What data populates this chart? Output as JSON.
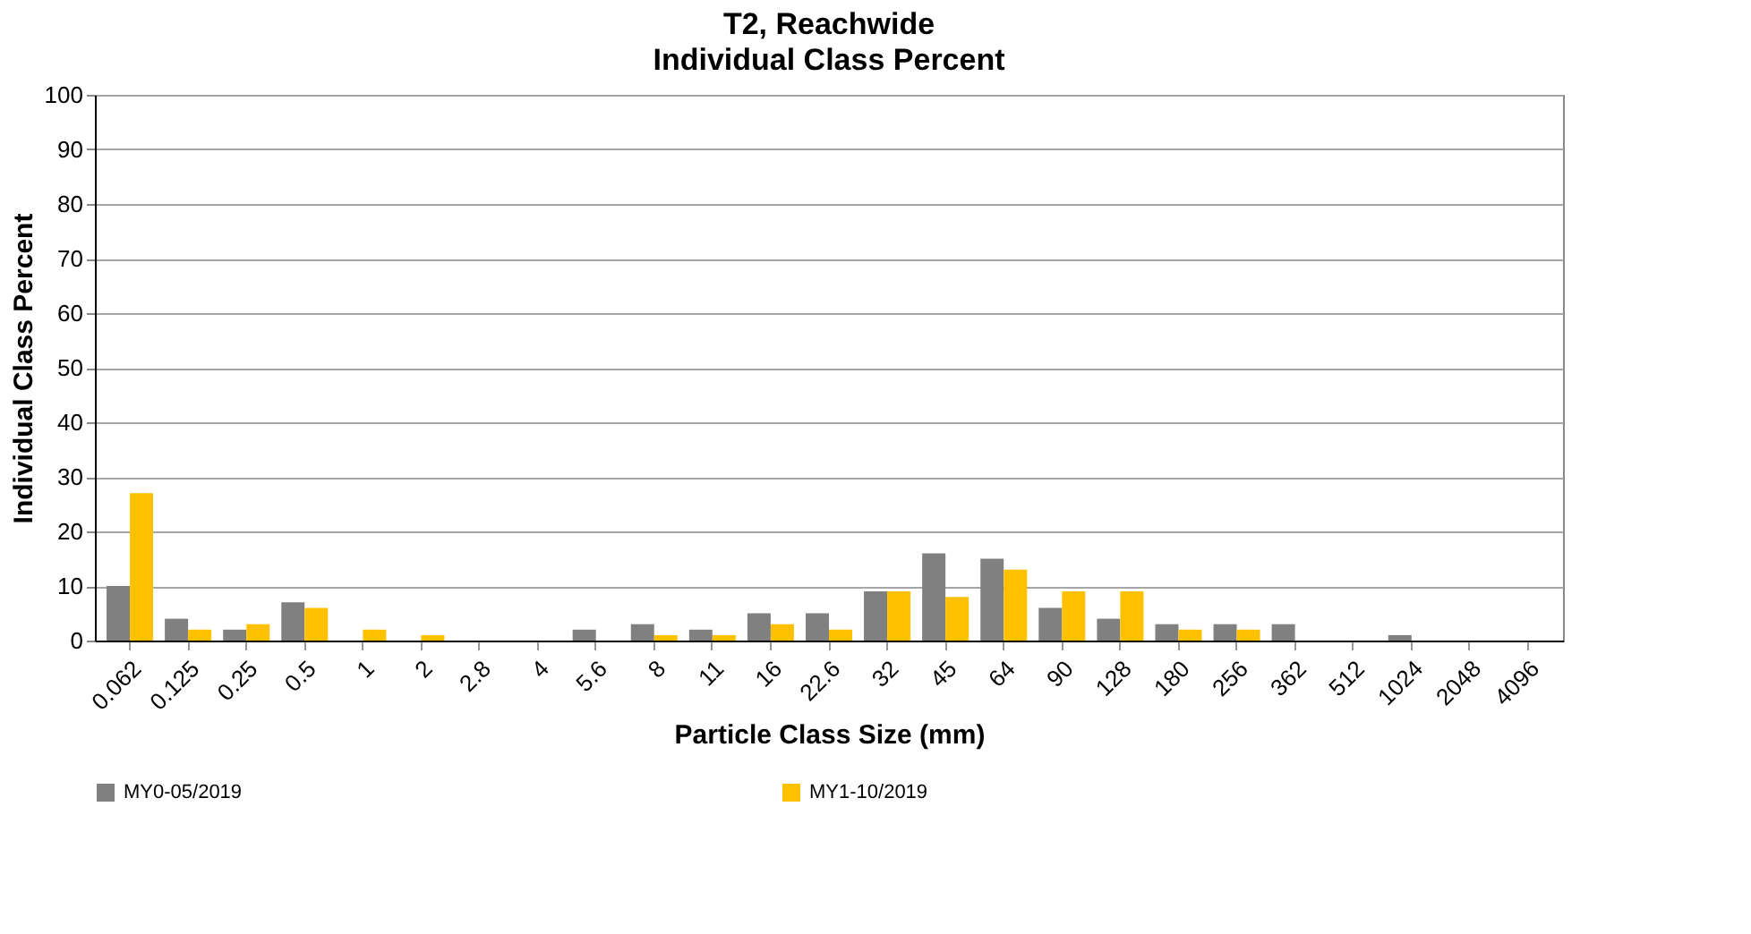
{
  "chart_data": {
    "type": "bar",
    "title": "T2, Reachwide",
    "subtitle": "Individual Class Percent",
    "xlabel": "Particle Class Size (mm)",
    "ylabel": "Individual Class Percent",
    "categories": [
      "0.062",
      "0.125",
      "0.25",
      "0.5",
      "1",
      "2",
      "2.8",
      "4",
      "5.6",
      "8",
      "11",
      "16",
      "22.6",
      "32",
      "45",
      "64",
      "90",
      "128",
      "180",
      "256",
      "362",
      "512",
      "1024",
      "2048",
      "4096"
    ],
    "series": [
      {
        "name": "MY0-05/2019",
        "color": "#808080",
        "values": [
          10,
          4,
          2,
          7,
          0,
          0,
          0,
          0,
          2,
          3,
          2,
          5,
          5,
          9,
          16,
          15,
          6,
          4,
          3,
          3,
          3,
          0,
          1,
          0,
          0
        ]
      },
      {
        "name": "MY1-10/2019",
        "color": "#ffc000",
        "values": [
          27,
          2,
          3,
          6,
          2,
          1,
          0,
          0,
          0,
          1,
          1,
          3,
          2,
          9,
          8,
          13,
          9,
          9,
          2,
          2,
          0,
          0,
          0,
          0,
          0
        ]
      }
    ],
    "ylim": [
      0,
      100
    ],
    "yticks": [
      0,
      10,
      20,
      30,
      40,
      50,
      60,
      70,
      80,
      90,
      100
    ],
    "grid": "y",
    "legend": "bottom"
  }
}
